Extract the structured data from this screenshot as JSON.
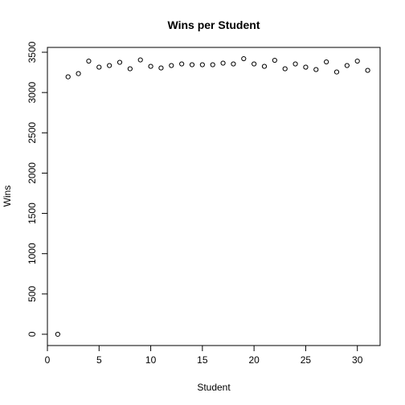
{
  "chart_data": {
    "type": "scatter",
    "title": "Wins per Student",
    "xlabel": "Student",
    "ylabel": "Wins",
    "xlim": [
      0,
      32.2
    ],
    "ylim": [
      -140,
      3560
    ],
    "xticks": [
      0,
      5,
      10,
      15,
      20,
      25,
      30
    ],
    "yticks": [
      0,
      500,
      1000,
      1500,
      2000,
      2500,
      3000,
      3500
    ],
    "grid": false,
    "legend": "none",
    "marker": "open-circle",
    "colors": {
      "points": "#000000",
      "axes": "#000000",
      "background": "#ffffff"
    },
    "series": [
      {
        "x": [
          1,
          2,
          3,
          4,
          5,
          6,
          7,
          8,
          9,
          10,
          11,
          12,
          13,
          14,
          15,
          16,
          17,
          18,
          19,
          20,
          21,
          22,
          23,
          24,
          25,
          26,
          27,
          28,
          29,
          30,
          31
        ],
        "y": [
          0,
          3195,
          3235,
          3390,
          3315,
          3335,
          3375,
          3295,
          3405,
          3325,
          3305,
          3335,
          3355,
          3345,
          3345,
          3345,
          3365,
          3355,
          3420,
          3355,
          3325,
          3400,
          3295,
          3355,
          3315,
          3285,
          3380,
          3255,
          3335,
          3390,
          3275
        ]
      }
    ]
  }
}
